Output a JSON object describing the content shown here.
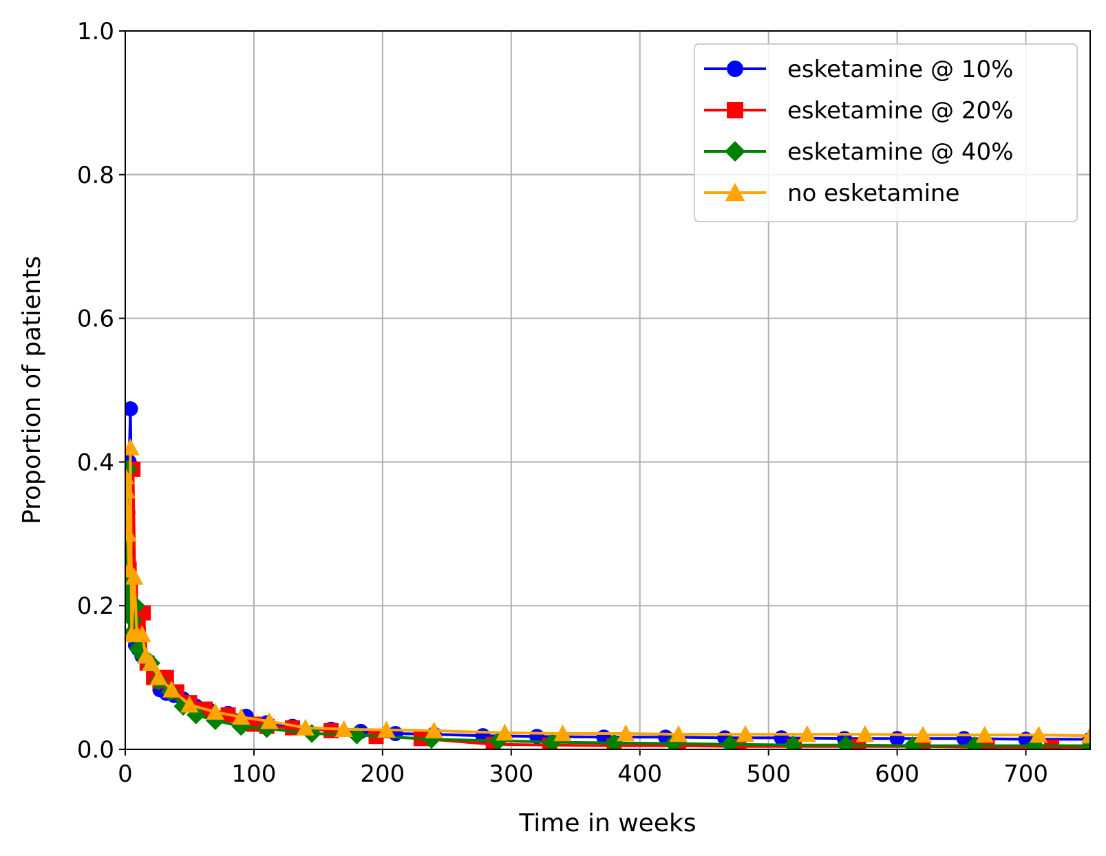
{
  "chart_data": {
    "type": "line",
    "xlabel": "Time in weeks",
    "ylabel": "Proportion of patients",
    "xlim": [
      0,
      750
    ],
    "ylim": [
      0.0,
      1.0
    ],
    "x_ticks": [
      0,
      100,
      200,
      300,
      400,
      500,
      600,
      700
    ],
    "y_ticks": [
      0.0,
      0.2,
      0.4,
      0.6,
      0.8,
      1.0
    ],
    "x_tick_labels": [
      "0",
      "100",
      "200",
      "300",
      "400",
      "500",
      "600",
      "700"
    ],
    "y_tick_labels": [
      "0.0",
      "0.2",
      "0.4",
      "0.6",
      "0.8",
      "1.0"
    ],
    "grid": true,
    "legend_position": "top-right",
    "series": [
      {
        "name": "esketamine @ 10%",
        "color": "#0000ff",
        "marker": "circle",
        "x": [
          0,
          1,
          2,
          3,
          4,
          6,
          8,
          10,
          13,
          17,
          22,
          27,
          32,
          38,
          45,
          55,
          65,
          80,
          94,
          110,
          130,
          160,
          183,
          210,
          240,
          278,
          320,
          372,
          420,
          466,
          510,
          559,
          600,
          652,
          700,
          750
        ],
        "y": [
          0.19,
          0.27,
          0.33,
          0.4,
          0.474,
          0.2,
          0.145,
          0.14,
          0.13,
          0.12,
          0.1,
          0.083,
          0.078,
          0.075,
          0.07,
          0.06,
          0.055,
          0.05,
          0.046,
          0.037,
          0.032,
          0.028,
          0.025,
          0.022,
          0.021,
          0.019,
          0.018,
          0.017,
          0.017,
          0.016,
          0.016,
          0.015,
          0.015,
          0.015,
          0.014,
          0.014
        ]
      },
      {
        "name": "esketamine @ 20%",
        "color": "#ff0000",
        "marker": "square",
        "x": [
          0,
          1,
          2,
          3,
          4,
          6,
          8,
          10,
          14,
          17,
          22,
          27,
          32,
          40,
          50,
          62,
          80,
          100,
          110,
          130,
          160,
          195,
          230,
          286,
          330,
          380,
          430,
          477,
          520,
          570,
          620,
          670,
          720,
          750
        ],
        "y": [
          0.2,
          0.26,
          0.29,
          0.25,
          0.22,
          0.39,
          0.18,
          0.17,
          0.19,
          0.12,
          0.1,
          0.095,
          0.1,
          0.08,
          0.065,
          0.056,
          0.048,
          0.035,
          0.032,
          0.03,
          0.026,
          0.018,
          0.015,
          0.007,
          0.006,
          0.005,
          0.005,
          0.004,
          0.004,
          0.004,
          0.004,
          0.003,
          0.003,
          0.003
        ]
      },
      {
        "name": "esketamine @ 40%",
        "color": "#008000",
        "marker": "diamond",
        "x": [
          0,
          1,
          2,
          3,
          4,
          6,
          8,
          10,
          14,
          20,
          26,
          35,
          45,
          55,
          70,
          90,
          110,
          145,
          180,
          238,
          290,
          332,
          380,
          426,
          470,
          519,
          560,
          612,
          660,
          707,
          750
        ],
        "y": [
          0.19,
          0.21,
          0.39,
          0.2,
          0.16,
          0.18,
          0.2,
          0.14,
          0.13,
          0.12,
          0.095,
          0.08,
          0.06,
          0.048,
          0.04,
          0.032,
          0.029,
          0.022,
          0.02,
          0.014,
          0.012,
          0.01,
          0.009,
          0.008,
          0.007,
          0.006,
          0.006,
          0.005,
          0.005,
          0.005,
          0.005
        ]
      },
      {
        "name": "no esketamine",
        "color": "#ffa500",
        "marker": "triangle",
        "x": [
          0,
          1,
          2,
          3,
          4,
          5,
          7,
          9,
          13,
          16,
          20,
          26,
          36,
          50,
          70,
          90,
          112,
          140,
          170,
          203,
          240,
          295,
          340,
          389,
          430,
          482,
          530,
          575,
          620,
          668,
          710,
          750
        ],
        "y": [
          0.38,
          0.36,
          0.3,
          0.25,
          0.42,
          0.16,
          0.24,
          0.16,
          0.16,
          0.13,
          0.12,
          0.1,
          0.083,
          0.062,
          0.052,
          0.045,
          0.039,
          0.03,
          0.028,
          0.027,
          0.026,
          0.023,
          0.022,
          0.022,
          0.021,
          0.021,
          0.021,
          0.021,
          0.02,
          0.02,
          0.02,
          0.019
        ]
      }
    ]
  }
}
